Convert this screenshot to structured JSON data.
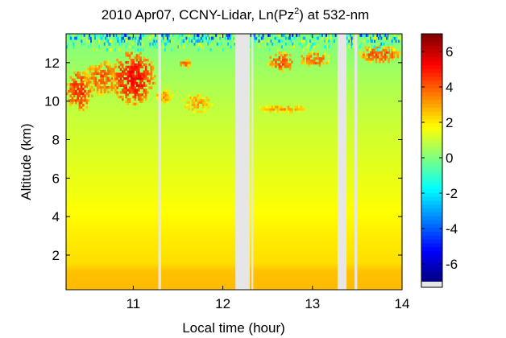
{
  "chart_data": {
    "type": "heatmap",
    "title_parts": {
      "before": "2010 Apr07, CCNY-Lidar, Ln(Pz",
      "sup": "2",
      "after": ") at 532-nm"
    },
    "xlabel": "Local time (hour)",
    "ylabel": "Altitude (km)",
    "xlim": [
      10.25,
      14.0
    ],
    "ylim": [
      0.2,
      13.5
    ],
    "x_ticks": [
      11,
      12,
      13,
      14
    ],
    "y_ticks": [
      2,
      4,
      6,
      8,
      10,
      12
    ],
    "x_tick_labels": [
      "11",
      "12",
      "13",
      "14"
    ],
    "y_tick_labels": [
      "2",
      "4",
      "6",
      "8",
      "10",
      "12"
    ],
    "colorbar": {
      "range": [
        -7,
        7
      ],
      "ticks": [
        -6,
        -4,
        -2,
        0,
        2,
        4,
        6
      ],
      "tick_labels": [
        "-6",
        "-4",
        "-2",
        "0",
        "2",
        "4",
        "6"
      ],
      "colormap": "jet",
      "missing_color": "#e6e6e6"
    },
    "data_gaps": [
      {
        "start": 11.28,
        "end": 11.31
      },
      {
        "start": 12.14,
        "end": 12.3
      },
      {
        "start": 12.32,
        "end": 12.34
      },
      {
        "start": 13.28,
        "end": 13.38
      },
      {
        "start": 13.47,
        "end": 13.5
      }
    ],
    "background_profile": [
      {
        "altitude": 0.2,
        "value": 2.7
      },
      {
        "altitude": 1.2,
        "value": 2.6
      },
      {
        "altitude": 1.6,
        "value": 2.2
      },
      {
        "altitude": 3.0,
        "value": 2.0
      },
      {
        "altitude": 5.0,
        "value": 1.6
      },
      {
        "altitude": 7.0,
        "value": 1.3
      },
      {
        "altitude": 9.0,
        "value": 1.0
      },
      {
        "altitude": 11.0,
        "value": 0.6
      },
      {
        "altitude": 12.5,
        "value": 0.2
      },
      {
        "altitude": 13.5,
        "value": 0.0
      }
    ],
    "cloud_features": [
      {
        "time_start": 10.25,
        "time_end": 10.55,
        "alt_bottom": 9.5,
        "alt_top": 11.6,
        "value": 4.8
      },
      {
        "time_start": 10.45,
        "time_end": 10.85,
        "alt_bottom": 10.3,
        "alt_top": 12.1,
        "value": 4.0
      },
      {
        "time_start": 10.75,
        "time_end": 11.25,
        "alt_bottom": 9.8,
        "alt_top": 12.6,
        "value": 5.2
      },
      {
        "time_start": 11.25,
        "time_end": 11.45,
        "alt_bottom": 9.9,
        "alt_top": 10.6,
        "value": 3.2
      },
      {
        "time_start": 11.5,
        "time_end": 11.65,
        "alt_bottom": 11.7,
        "alt_top": 12.2,
        "value": 3.6
      },
      {
        "time_start": 11.55,
        "time_end": 11.9,
        "alt_bottom": 9.4,
        "alt_top": 10.4,
        "value": 3.0
      },
      {
        "time_start": 12.36,
        "time_end": 12.95,
        "alt_bottom": 9.4,
        "alt_top": 9.8,
        "value": 3.0
      },
      {
        "time_start": 12.5,
        "time_end": 12.8,
        "alt_bottom": 11.5,
        "alt_top": 12.6,
        "value": 4.2
      },
      {
        "time_start": 12.85,
        "time_end": 13.2,
        "alt_bottom": 11.8,
        "alt_top": 12.6,
        "value": 4.0
      },
      {
        "time_start": 13.5,
        "time_end": 14.0,
        "alt_bottom": 12.0,
        "alt_top": 12.9,
        "value": 4.2
      }
    ],
    "noise_layer": {
      "alt_bottom": 12.6,
      "alt_top": 13.5,
      "value_min": -6,
      "value_max": 2
    }
  }
}
